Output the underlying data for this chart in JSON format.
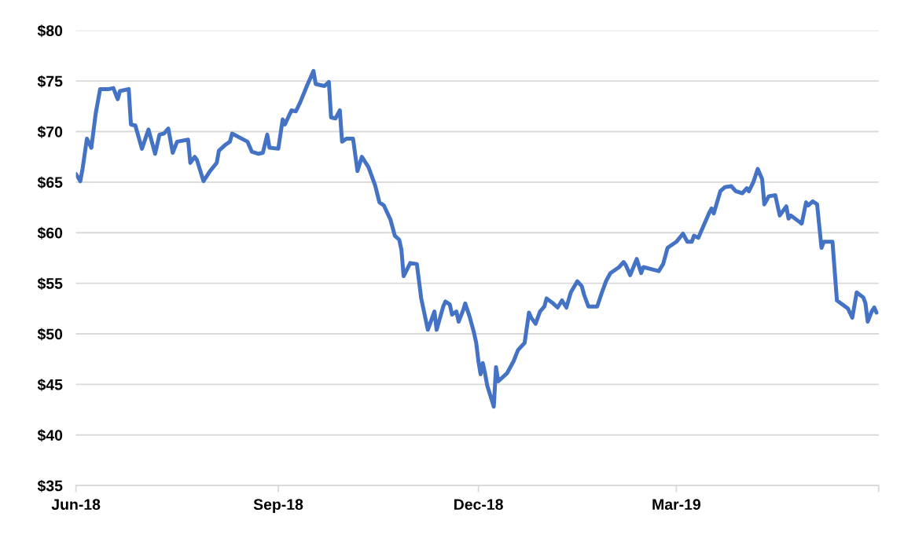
{
  "chart_data": {
    "type": "line",
    "x": [
      "2018-06-01",
      "2018-06-03",
      "2018-06-04",
      "2018-06-06",
      "2018-06-08",
      "2018-06-10",
      "2018-06-12",
      "2018-06-16",
      "2018-06-18",
      "2018-06-20",
      "2018-06-21",
      "2018-06-25",
      "2018-06-26",
      "2018-06-28",
      "2018-07-01",
      "2018-07-04",
      "2018-07-07",
      "2018-07-09",
      "2018-07-11",
      "2018-07-13",
      "2018-07-15",
      "2018-07-17",
      "2018-07-22",
      "2018-07-23",
      "2018-07-25",
      "2018-07-26",
      "2018-07-29",
      "2018-08-01",
      "2018-08-04",
      "2018-08-05",
      "2018-08-08",
      "2018-08-10",
      "2018-08-11",
      "2018-08-18",
      "2018-08-20",
      "2018-08-23",
      "2018-08-25",
      "2018-08-27",
      "2018-08-28",
      "2018-09-01",
      "2018-09-03",
      "2018-09-04",
      "2018-09-07",
      "2018-09-09",
      "2018-09-11",
      "2018-09-14",
      "2018-09-16",
      "2018-09-17",
      "2018-09-18",
      "2018-09-22",
      "2018-09-24",
      "2018-09-25",
      "2018-09-27",
      "2018-09-29",
      "2018-09-30",
      "2018-10-02",
      "2018-10-05",
      "2018-10-07",
      "2018-10-09",
      "2018-10-12",
      "2018-10-15",
      "2018-10-17",
      "2018-10-19",
      "2018-10-22",
      "2018-10-24",
      "2018-10-26",
      "2018-10-27",
      "2018-10-28",
      "2018-10-31",
      "2018-11-03",
      "2018-11-04",
      "2018-11-05",
      "2018-11-08",
      "2018-11-11",
      "2018-11-12",
      "2018-11-15",
      "2018-11-16",
      "2018-11-18",
      "2018-11-19",
      "2018-11-21",
      "2018-11-22",
      "2018-11-24",
      "2018-11-25",
      "2018-11-27",
      "2018-11-29",
      "2018-11-30",
      "2018-12-01",
      "2018-12-02",
      "2018-12-03",
      "2018-12-04",
      "2018-12-05",
      "2018-12-08",
      "2018-12-09",
      "2018-12-10",
      "2018-12-14",
      "2018-12-17",
      "2018-12-19",
      "2018-12-22",
      "2018-12-24",
      "2018-12-25",
      "2018-12-27",
      "2018-12-29",
      "2018-12-31",
      "2019-01-01",
      "2019-01-04",
      "2019-01-06",
      "2019-01-08",
      "2019-01-10",
      "2019-01-12",
      "2019-01-15",
      "2019-01-17",
      "2019-01-18",
      "2019-01-20",
      "2019-01-24",
      "2019-01-26",
      "2019-01-28",
      "2019-01-30",
      "2019-02-03",
      "2019-02-05",
      "2019-02-06",
      "2019-02-08",
      "2019-02-11",
      "2019-02-13",
      "2019-02-14",
      "2019-02-21",
      "2019-02-23",
      "2019-02-25",
      "2019-03-01",
      "2019-03-04",
      "2019-03-06",
      "2019-03-08",
      "2019-03-09",
      "2019-03-11",
      "2019-03-12",
      "2019-03-16",
      "2019-03-17",
      "2019-03-18",
      "2019-03-21",
      "2019-03-23",
      "2019-03-26",
      "2019-03-28",
      "2019-03-31",
      "2019-04-02",
      "2019-04-03",
      "2019-04-05",
      "2019-04-07",
      "2019-04-09",
      "2019-04-10",
      "2019-04-12",
      "2019-04-15",
      "2019-04-17",
      "2019-04-20",
      "2019-04-21",
      "2019-04-22",
      "2019-04-27",
      "2019-04-29",
      "2019-04-30",
      "2019-05-02",
      "2019-05-04",
      "2019-05-06",
      "2019-05-07",
      "2019-05-11",
      "2019-05-13",
      "2019-05-18",
      "2019-05-20",
      "2019-05-22",
      "2019-05-25",
      "2019-05-26",
      "2019-05-27",
      "2019-05-29",
      "2019-05-30",
      "2019-05-31"
    ],
    "series": [
      {
        "color": "#4472c4",
        "values": [
          65.8,
          65.1,
          66.3,
          69.3,
          68.4,
          71.8,
          74.2,
          74.2,
          74.3,
          73.2,
          74.0,
          74.2,
          70.7,
          70.6,
          68.3,
          70.2,
          67.8,
          69.7,
          69.8,
          70.3,
          67.9,
          69.0,
          69.2,
          66.9,
          67.5,
          67.2,
          65.1,
          66.1,
          66.9,
          68.1,
          68.7,
          69.0,
          69.8,
          69.0,
          68.0,
          67.8,
          67.9,
          69.7,
          68.4,
          68.3,
          71.2,
          70.7,
          72.1,
          72.0,
          72.9,
          74.5,
          75.5,
          76.0,
          74.7,
          74.5,
          74.9,
          71.4,
          71.3,
          72.1,
          69.0,
          69.3,
          69.3,
          66.1,
          67.5,
          66.5,
          64.7,
          63.0,
          62.7,
          61.3,
          59.7,
          59.3,
          58.3,
          55.7,
          57.0,
          56.9,
          55.2,
          53.5,
          50.4,
          52.2,
          50.4,
          52.7,
          53.2,
          52.9,
          51.9,
          52.2,
          51.2,
          52.3,
          53.0,
          51.7,
          50.1,
          49.1,
          47.3,
          46.0,
          47.1,
          46.1,
          44.9,
          42.8,
          46.7,
          45.3,
          46.1,
          47.3,
          48.4,
          49.1,
          52.1,
          51.6,
          51.0,
          52.2,
          52.7,
          53.5,
          53.0,
          52.6,
          53.3,
          52.6,
          54.1,
          55.2,
          54.7,
          53.9,
          52.7,
          52.7,
          54.0,
          55.2,
          56.0,
          56.6,
          57.1,
          56.8,
          55.8,
          57.4,
          56.0,
          56.6,
          56.2,
          56.9,
          58.5,
          59.1,
          59.9,
          59.1,
          59.1,
          59.7,
          59.5,
          60.0,
          62.0,
          62.4,
          61.9,
          64.1,
          64.5,
          64.6,
          64.1,
          63.9,
          64.4,
          64.1,
          65.0,
          66.3,
          65.3,
          62.8,
          63.6,
          63.7,
          61.7,
          62.6,
          61.4,
          61.7,
          60.9,
          63.0,
          62.7,
          63.1,
          62.8,
          58.5,
          59.1,
          59.1,
          53.3,
          52.5,
          51.6,
          54.1,
          53.6,
          53.0,
          51.2,
          52.3,
          52.6,
          52.1
        ]
      }
    ],
    "xlim": [
      "2018-06-01",
      "2019-06-01"
    ],
    "xticks": [
      {
        "value": "2018-06-01",
        "label": "Jun-18"
      },
      {
        "value": "2018-09-01",
        "label": "Sep-18"
      },
      {
        "value": "2018-12-01",
        "label": "Dec-18"
      },
      {
        "value": "2019-03-01",
        "label": "Mar-19"
      },
      {
        "value": "2019-06-01",
        "label": null
      }
    ],
    "ylim": [
      35,
      80
    ],
    "yticks": [
      {
        "value": 35,
        "label": "$35"
      },
      {
        "value": 40,
        "label": "$40"
      },
      {
        "value": 45,
        "label": "$45"
      },
      {
        "value": 50,
        "label": "$50"
      },
      {
        "value": 55,
        "label": "$55"
      },
      {
        "value": 60,
        "label": "$60"
      },
      {
        "value": 65,
        "label": "$65"
      },
      {
        "value": 70,
        "label": "$70"
      },
      {
        "value": 75,
        "label": "$75"
      },
      {
        "value": 80,
        "label": "$80"
      }
    ],
    "grid": "y",
    "marker": "none",
    "line_style": "solid"
  }
}
